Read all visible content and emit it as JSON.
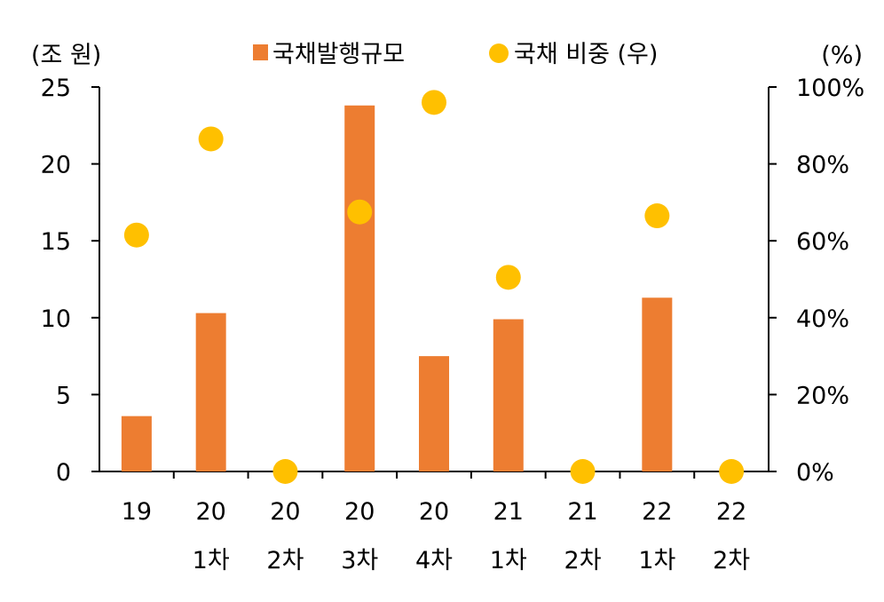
{
  "chart_data": {
    "type": "bar",
    "categories": [
      {
        "line1": "19",
        "line2": ""
      },
      {
        "line1": "20",
        "line2": "1차"
      },
      {
        "line1": "20",
        "line2": "2차"
      },
      {
        "line1": "20",
        "line2": "3차"
      },
      {
        "line1": "20",
        "line2": "4차"
      },
      {
        "line1": "21",
        "line2": "1차"
      },
      {
        "line1": "21",
        "line2": "2차"
      },
      {
        "line1": "22",
        "line2": "1차"
      },
      {
        "line1": "22",
        "line2": "2차"
      }
    ],
    "series": [
      {
        "name": "국채발행규모",
        "kind": "bar",
        "axis": "left",
        "color": "#ED7D31",
        "values": [
          3.6,
          10.3,
          0,
          23.8,
          7.5,
          9.9,
          0,
          11.3,
          0
        ]
      },
      {
        "name": "국채 비중 (우)",
        "kind": "scatter",
        "axis": "right",
        "color": "#FFC000",
        "values": [
          61.5,
          86.5,
          0,
          67.5,
          96.0,
          50.5,
          0,
          66.5,
          0
        ]
      }
    ],
    "left_axis": {
      "unit_label": "(조 원)",
      "ylim": [
        0,
        25
      ],
      "ticks": [
        0,
        5,
        10,
        15,
        20,
        25
      ]
    },
    "right_axis": {
      "unit_label": "(%)",
      "ylim": [
        0,
        100
      ],
      "ticks": [
        "0%",
        "20%",
        "40%",
        "60%",
        "80%",
        "100%"
      ]
    },
    "legend": {
      "position": "top-center"
    },
    "grid": false
  }
}
